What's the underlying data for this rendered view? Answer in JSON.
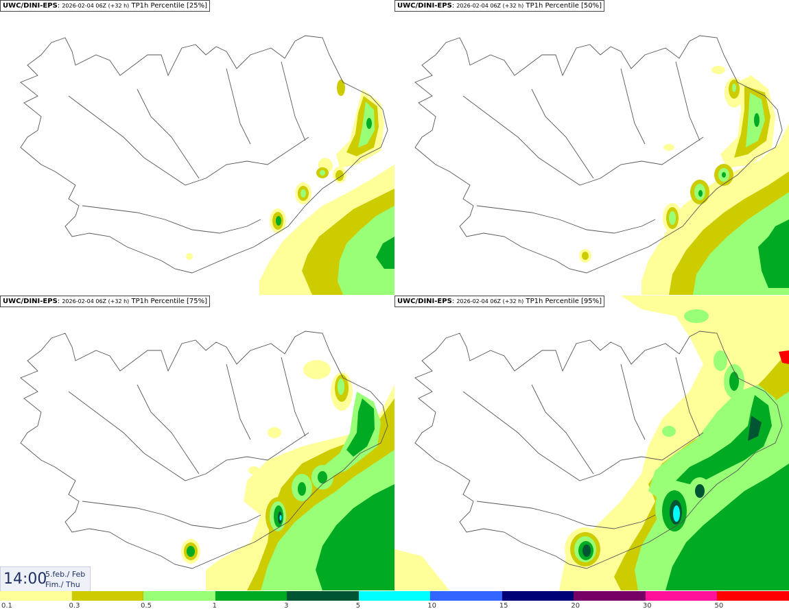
{
  "panels": [
    {
      "model": "UWC/DINI-EPS",
      "run": "2026-02-04 06Z (+32 h)",
      "field": "TP1h Percentile [25%]"
    },
    {
      "model": "UWC/DINI-EPS",
      "run": "2026-02-04 06Z (+32 h)",
      "field": "TP1h Percentile [50%]"
    },
    {
      "model": "UWC/DINI-EPS",
      "run": "2026-02-04 06Z (+32 h)",
      "field": "TP1h Percentile [75%]"
    },
    {
      "model": "UWC/DINI-EPS",
      "run": "2026-02-04 06Z (+32 h)",
      "field": "TP1h Percentile [95%]"
    }
  ],
  "sep": ": ",
  "valid": {
    "time": "14:00",
    "date_line1": "5.feb./ Feb",
    "date_line2": "Fim./ Thu"
  },
  "legend": {
    "thresholds": [
      "0.1",
      "0.3",
      "0.5",
      "1",
      "3",
      "5",
      "10",
      "15",
      "20",
      "30",
      "50"
    ],
    "colors": [
      "#ffff99",
      "#cccc00",
      "#99ff77",
      "#00aa22",
      "#005533",
      "#00ffff",
      "#3366ff",
      "#000077",
      "#770066",
      "#ff1199",
      "#ff0000"
    ]
  },
  "colors": {
    "coast": "#555555",
    "l1": "#ffff99",
    "l2": "#cccc00",
    "l3": "#99ff77",
    "l4": "#00aa22",
    "l5": "#005533",
    "l6": "#00ffff"
  }
}
